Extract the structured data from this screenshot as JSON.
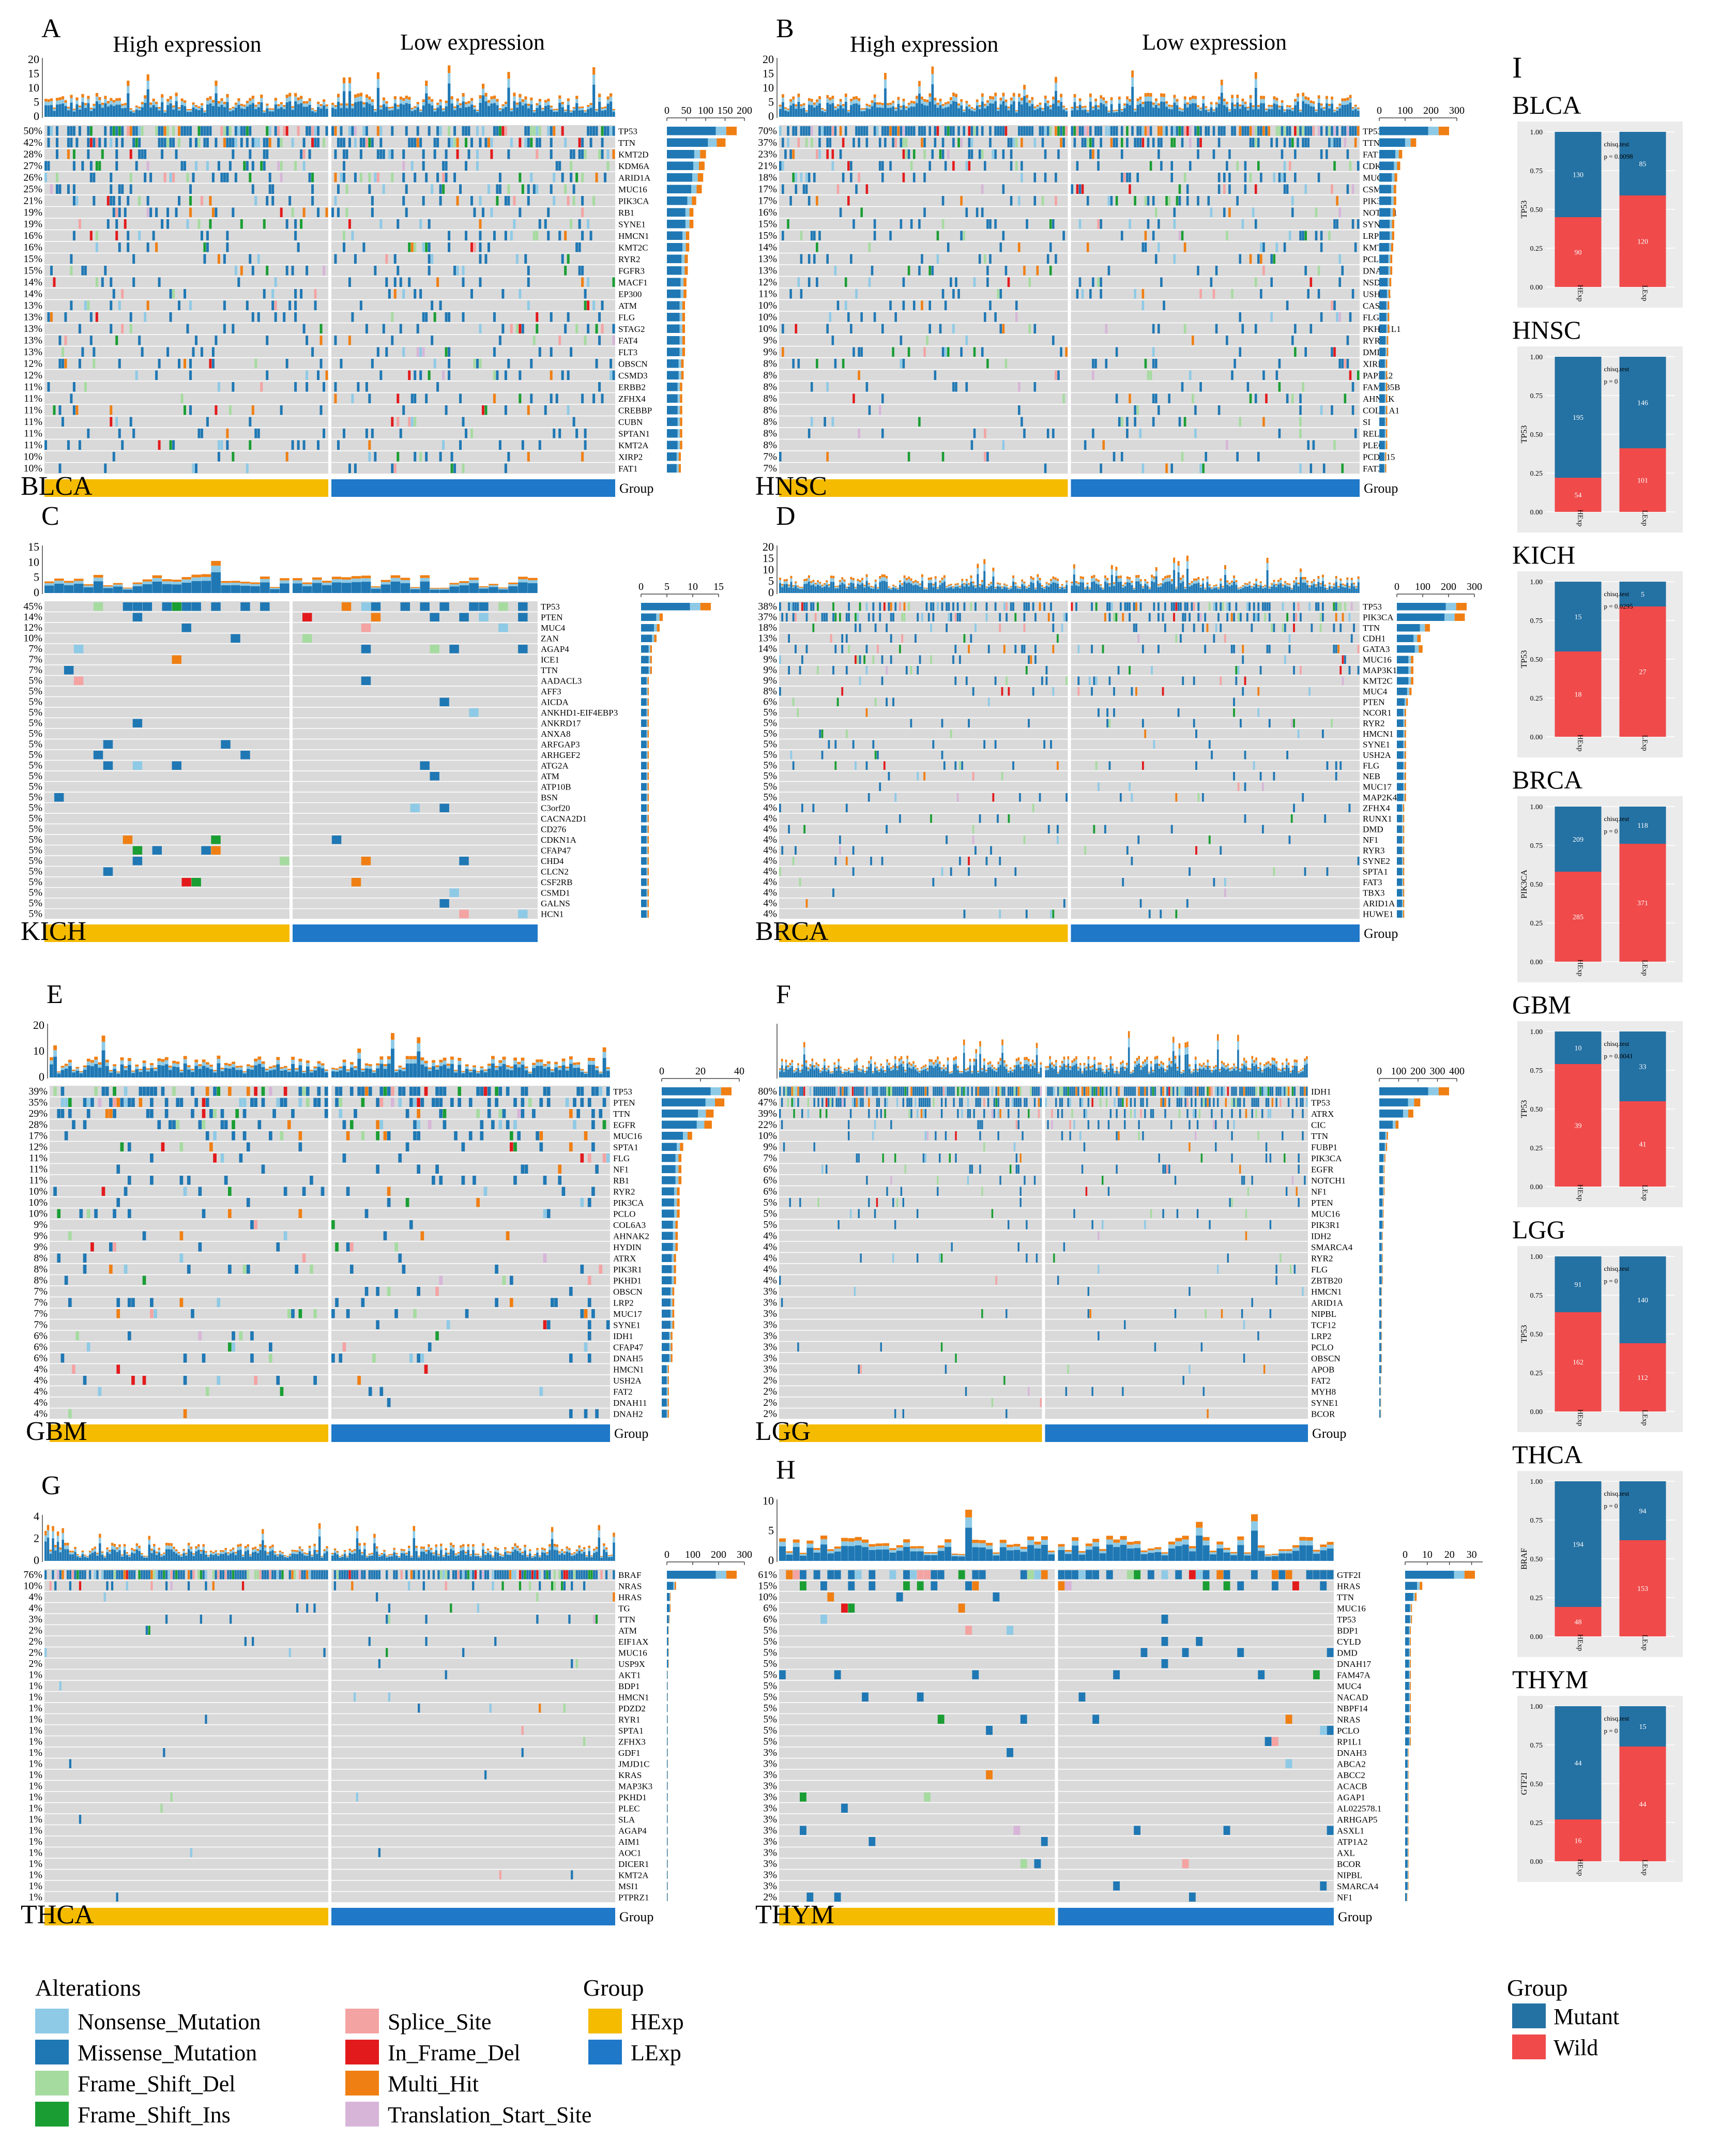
{
  "colors": {
    "Nonsense_Mutation": "#8ecae6",
    "Missense_Mutation": "#1f78b4",
    "Frame_Shift_Del": "#a6dba0",
    "Frame_Shift_Ins": "#1a9e33",
    "Splice_Site": "#f4a3a3",
    "In_Frame_Del": "#e31a1c",
    "Multi_Hit": "#f07f13",
    "Translation_Start_Site": "#d7b5d8",
    "HExp": "#f5bb00",
    "LExp": "#1f78c8",
    "Mutant": "#2471a3",
    "Wild": "#f04a4a",
    "grid": "#d9d9d9",
    "panel_bg": "#ebebeb"
  },
  "legend": {
    "alterations_title": "Alterations",
    "alterations": [
      "Nonsense_Mutation",
      "Missense_Mutation",
      "Frame_Shift_Del",
      "Frame_Shift_Ins",
      "Splice_Site",
      "In_Frame_Del",
      "Multi_Hit",
      "Translation_Start_Site"
    ],
    "group_title": "Group",
    "groups": [
      "HExp",
      "LExp"
    ],
    "right_group_title": "Group",
    "right_groups": [
      "Mutant",
      "Wild"
    ]
  },
  "chart_data": [
    {
      "type": "heatmap",
      "panel": "A",
      "cancer": "BLCA",
      "header_left": "High expression",
      "header_right": "Low expression",
      "tmb_ticks": [
        "0",
        "5",
        "10",
        "15",
        "20"
      ],
      "side_ticks": [
        "0",
        "50",
        "100",
        "150",
        "200"
      ],
      "side_max": 200,
      "group_label": "Group",
      "genes": [
        "TP53",
        "TTN",
        "KMT2D",
        "KDM6A",
        "ARID1A",
        "MUC16",
        "PIK3CA",
        "RB1",
        "SYNE1",
        "HMCN1",
        "KMT2C",
        "RYR2",
        "FGFR3",
        "MACF1",
        "EP300",
        "ATM",
        "FLG",
        "STAG2",
        "FAT4",
        "FLT3",
        "OBSCN",
        "CSMD3",
        "ERBB2",
        "ZFHX4",
        "CREBBP",
        "CUBN",
        "SPTAN1",
        "KMT2A",
        "XIRP2",
        "FAT1"
      ],
      "pcts": [
        "50%",
        "42%",
        "28%",
        "27%",
        "26%",
        "25%",
        "21%",
        "19%",
        "19%",
        "16%",
        "16%",
        "15%",
        "15%",
        "14%",
        "14%",
        "13%",
        "13%",
        "13%",
        "13%",
        "13%",
        "12%",
        "12%",
        "11%",
        "11%",
        "11%",
        "11%",
        "11%",
        "11%",
        "10%",
        "10%"
      ]
    },
    {
      "type": "heatmap",
      "panel": "B",
      "cancer": "HNSC",
      "header_left": "High expression",
      "header_right": "Low expression",
      "tmb_ticks": [
        "0",
        "5",
        "10",
        "15",
        "20"
      ],
      "side_ticks": [
        "0",
        "100",
        "200",
        "300"
      ],
      "side_max": 300,
      "group_label": "Group",
      "genes": [
        "TP53",
        "TTN",
        "FAT1",
        "CDKN2A",
        "MUC16",
        "CSMD3",
        "PIK3CA",
        "NOTCH1",
        "SYNE1",
        "LRP1B",
        "KMT2D",
        "PCLO",
        "DNAH5",
        "NSD1",
        "USH2A",
        "CASP8",
        "FLG",
        "PKHD1L1",
        "RYR2",
        "DMD",
        "XIRP2",
        "PAPPA2",
        "FAM135B",
        "AHNAK",
        "COL11A1",
        "SI",
        "RELN",
        "PLEC",
        "PCDH15",
        "FAT3"
      ],
      "pcts": [
        "70%",
        "37%",
        "23%",
        "21%",
        "18%",
        "17%",
        "17%",
        "16%",
        "15%",
        "15%",
        "14%",
        "13%",
        "13%",
        "12%",
        "11%",
        "10%",
        "10%",
        "10%",
        "9%",
        "9%",
        "8%",
        "8%",
        "8%",
        "8%",
        "8%",
        "8%",
        "8%",
        "8%",
        "7%",
        "7%"
      ]
    },
    {
      "type": "heatmap",
      "panel": "C",
      "cancer": "KICH",
      "tmb_ticks": [
        "0",
        "5",
        "10",
        "15"
      ],
      "side_ticks": [
        "0",
        "5",
        "10",
        "15"
      ],
      "side_max": 15,
      "group_label": "",
      "genes": [
        "TP53",
        "PTEN",
        "MUC4",
        "ZAN",
        "AGAP4",
        "ICE1",
        "TTN",
        "AADACL3",
        "AFF3",
        "AICDA",
        "ANKHD1-EIF4EBP3",
        "ANKRD17",
        "ANXA8",
        "ARFGAP3",
        "ARHGEF2",
        "ATG2A",
        "ATM",
        "ATP10B",
        "BSN",
        "C3orf20",
        "CACNA2D1",
        "CD276",
        "CDKN1A",
        "CFAP47",
        "CHD4",
        "CLCN2",
        "CSF2RB",
        "CSMD1",
        "GALNS",
        "HCN1"
      ],
      "pcts": [
        "45%",
        "14%",
        "12%",
        "10%",
        "7%",
        "7%",
        "7%",
        "5%",
        "5%",
        "5%",
        "5%",
        "5%",
        "5%",
        "5%",
        "5%",
        "5%",
        "5%",
        "5%",
        "5%",
        "5%",
        "5%",
        "5%",
        "5%",
        "5%",
        "5%",
        "5%",
        "5%",
        "5%",
        "5%",
        "5%"
      ]
    },
    {
      "type": "heatmap",
      "panel": "D",
      "cancer": "BRCA",
      "tmb_ticks": [
        "0",
        "5",
        "10",
        "15",
        "20"
      ],
      "side_ticks": [
        "0",
        "100",
        "200",
        "300"
      ],
      "side_max": 300,
      "group_label": "Group",
      "genes": [
        "TP53",
        "PIK3CA",
        "TTN",
        "CDH1",
        "GATA3",
        "MUC16",
        "MAP3K1",
        "KMT2C",
        "MUC4",
        "PTEN",
        "NCOR1",
        "RYR2",
        "HMCN1",
        "SYNE1",
        "USH2A",
        "FLG",
        "NEB",
        "MUC17",
        "MAP2K4",
        "ZFHX4",
        "RUNX1",
        "DMD",
        "NF1",
        "RYR3",
        "SYNE2",
        "SPTA1",
        "FAT3",
        "TBX3",
        "ARID1A",
        "HUWE1"
      ],
      "pcts": [
        "38%",
        "37%",
        "18%",
        "13%",
        "14%",
        "9%",
        "9%",
        "9%",
        "8%",
        "6%",
        "5%",
        "5%",
        "5%",
        "5%",
        "5%",
        "5%",
        "5%",
        "5%",
        "5%",
        "4%",
        "4%",
        "4%",
        "4%",
        "4%",
        "4%",
        "4%",
        "4%",
        "4%",
        "4%",
        "4%"
      ]
    },
    {
      "type": "heatmap",
      "panel": "E",
      "cancer": "GBM",
      "tmb_ticks": [
        "0",
        "10",
        "20"
      ],
      "side_ticks": [
        "0",
        "20",
        "40"
      ],
      "side_max": 40,
      "group_label": "Group",
      "genes": [
        "TP53",
        "PTEN",
        "TTN",
        "EGFR",
        "MUC16",
        "SPTA1",
        "FLG",
        "NF1",
        "RB1",
        "RYR2",
        "PIK3CA",
        "PCLO",
        "COL6A3",
        "AHNAK2",
        "HYDIN",
        "ATRX",
        "PIK3R1",
        "PKHD1",
        "OBSCN",
        "LRP2",
        "MUC17",
        "SYNE1",
        "IDH1",
        "CFAP47",
        "DNAH5",
        "HMCN1",
        "USH2A",
        "FAT2",
        "DNAH11",
        "DNAH2"
      ],
      "pcts": [
        "39%",
        "35%",
        "29%",
        "28%",
        "17%",
        "12%",
        "11%",
        "11%",
        "11%",
        "10%",
        "10%",
        "10%",
        "9%",
        "9%",
        "9%",
        "8%",
        "8%",
        "8%",
        "7%",
        "7%",
        "7%",
        "7%",
        "6%",
        "6%",
        "6%",
        "4%",
        "4%",
        "4%",
        "4%",
        "4%"
      ]
    },
    {
      "type": "heatmap",
      "panel": "F",
      "cancer": "LGG",
      "tmb_ticks": [],
      "side_ticks": [
        "0",
        "100",
        "200",
        "300",
        "400"
      ],
      "side_max": 400,
      "group_label": "Group",
      "genes": [
        "IDH1",
        "TP53",
        "ATRX",
        "CIC",
        "TTN",
        "FUBP1",
        "PIK3CA",
        "EGFR",
        "NOTCH1",
        "NF1",
        "PTEN",
        "MUC16",
        "PIK3R1",
        "IDH2",
        "SMARCA4",
        "RYR2",
        "FLG",
        "ZBTB20",
        "HMCN1",
        "ARID1A",
        "NIPBL",
        "TCF12",
        "LRP2",
        "PCLO",
        "OBSCN",
        "APOB",
        "FAT2",
        "MYH8",
        "SYNE1",
        "BCOR"
      ],
      "pcts": [
        "80%",
        "47%",
        "39%",
        "22%",
        "10%",
        "9%",
        "7%",
        "6%",
        "6%",
        "6%",
        "5%",
        "5%",
        "5%",
        "4%",
        "4%",
        "4%",
        "4%",
        "4%",
        "3%",
        "3%",
        "3%",
        "3%",
        "3%",
        "3%",
        "3%",
        "3%",
        "2%",
        "2%",
        "2%",
        "2%"
      ]
    },
    {
      "type": "heatmap",
      "panel": "G",
      "cancer": "THCA",
      "tmb_ticks": [
        "0",
        "2",
        "4"
      ],
      "side_ticks": [
        "0",
        "100",
        "200",
        "300"
      ],
      "side_max": 300,
      "group_label": "Group",
      "genes": [
        "BRAF",
        "NRAS",
        "HRAS",
        "TG",
        "TTN",
        "ATM",
        "EIF1AX",
        "MUC16",
        "USP9X",
        "AKT1",
        "BDP1",
        "HMCN1",
        "PDZD2",
        "RYR1",
        "SPTA1",
        "ZFHX3",
        "GDF1",
        "JMJD1C",
        "KRAS",
        "MAP3K3",
        "PKHD1",
        "PLEC",
        "SLA",
        "AGAP4",
        "AIM1",
        "AOC1",
        "DICER1",
        "KMT2A",
        "MSI1",
        "PTPRZ1"
      ],
      "pcts": [
        "76%",
        "10%",
        "4%",
        "4%",
        "3%",
        "2%",
        "2%",
        "2%",
        "2%",
        "1%",
        "1%",
        "1%",
        "1%",
        "1%",
        "1%",
        "1%",
        "1%",
        "1%",
        "1%",
        "1%",
        "1%",
        "1%",
        "1%",
        "1%",
        "1%",
        "1%",
        "1%",
        "1%",
        "1%",
        "1%"
      ]
    },
    {
      "type": "heatmap",
      "panel": "H",
      "cancer": "THYM",
      "tmb_ticks": [
        "0",
        "5",
        "10"
      ],
      "side_ticks": [
        "0",
        "10",
        "20",
        "30"
      ],
      "side_max": 35,
      "group_label": "Group",
      "genes": [
        "GTF2I",
        "HRAS",
        "TTN",
        "MUC16",
        "TP53",
        "BDP1",
        "CYLD",
        "DMD",
        "DNAH17",
        "FAM47A",
        "MUC4",
        "NACAD",
        "NBPF14",
        "NRAS",
        "PCLO",
        "RP1L1",
        "DNAH3",
        "ABCA2",
        "ABCC2",
        "ACACB",
        "AGAP1",
        "AL022578.1",
        "ARHGAP5",
        "ASXL1",
        "ATP1A2",
        "AXL",
        "BCOR",
        "NIPBL",
        "SMARCA4",
        "NF1"
      ],
      "pcts": [
        "61%",
        "15%",
        "10%",
        "6%",
        "6%",
        "5%",
        "5%",
        "5%",
        "5%",
        "5%",
        "5%",
        "5%",
        "5%",
        "5%",
        "5%",
        "5%",
        "3%",
        "3%",
        "3%",
        "3%",
        "3%",
        "3%",
        "3%",
        "3%",
        "3%",
        "3%",
        "3%",
        "3%",
        "3%",
        "2%"
      ]
    },
    {
      "type": "bar",
      "panel": "I",
      "cancer": "BLCA",
      "ylabel": "TP53",
      "categories": [
        "HExp",
        "LExp"
      ],
      "test_label": "chisq.test",
      "p_text": "p = 0.0098",
      "series": [
        {
          "name": "Mutant",
          "values": [
            130,
            85
          ]
        },
        {
          "name": "Wild",
          "values": [
            90,
            120
          ]
        }
      ],
      "mutant_fraction": [
        0.55,
        0.41
      ],
      "yticks": [
        "0.00",
        "0.25",
        "0.50",
        "0.75",
        "1.00"
      ]
    },
    {
      "type": "bar",
      "panel": "I",
      "cancer": "HNSC",
      "ylabel": "TP53",
      "categories": [
        "HExp",
        "LExp"
      ],
      "test_label": "chisq.test",
      "p_text": "p = 0",
      "series": [
        {
          "name": "Mutant",
          "values": [
            195,
            146
          ]
        },
        {
          "name": "Wild",
          "values": [
            54,
            101
          ]
        }
      ],
      "mutant_fraction": [
        0.78,
        0.59
      ],
      "yticks": [
        "0.00",
        "0.25",
        "0.50",
        "0.75",
        "1.00"
      ]
    },
    {
      "type": "bar",
      "panel": "I",
      "cancer": "KICH",
      "ylabel": "TP53",
      "categories": [
        "HExp",
        "LExp"
      ],
      "test_label": "chisq.test",
      "p_text": "p = 0.0295",
      "series": [
        {
          "name": "Mutant",
          "values": [
            15,
            5
          ]
        },
        {
          "name": "Wild",
          "values": [
            18,
            27
          ]
        }
      ],
      "mutant_fraction": [
        0.45,
        0.16
      ],
      "yticks": [
        "0.00",
        "0.25",
        "0.50",
        "0.75",
        "1.00"
      ]
    },
    {
      "type": "bar",
      "panel": "I",
      "cancer": "BRCA",
      "ylabel": "PIK3CA",
      "categories": [
        "HExp",
        "LExp"
      ],
      "test_label": "chisq.test",
      "p_text": "p = 0",
      "series": [
        {
          "name": "Mutant",
          "values": [
            209,
            118
          ]
        },
        {
          "name": "Wild",
          "values": [
            285,
            371
          ]
        }
      ],
      "mutant_fraction": [
        0.42,
        0.24
      ],
      "yticks": [
        "0.00",
        "0.25",
        "0.50",
        "0.75",
        "1.00"
      ]
    },
    {
      "type": "bar",
      "panel": "I",
      "cancer": "GBM",
      "ylabel": "TP53",
      "categories": [
        "HExp",
        "LExp"
      ],
      "test_label": "chisq.test",
      "p_text": "p = 0.0041",
      "series": [
        {
          "name": "Mutant",
          "values": [
            10,
            33
          ]
        },
        {
          "name": "Wild",
          "values": [
            39,
            41
          ]
        }
      ],
      "mutant_fraction": [
        0.21,
        0.45
      ],
      "yticks": [
        "0.00",
        "0.25",
        "0.50",
        "0.75",
        "1.00"
      ]
    },
    {
      "type": "bar",
      "panel": "I",
      "cancer": "LGG",
      "ylabel": "TP53",
      "categories": [
        "HExp",
        "LExp"
      ],
      "test_label": "chisq.test",
      "p_text": "p = 0",
      "series": [
        {
          "name": "Mutant",
          "values": [
            91,
            140
          ]
        },
        {
          "name": "Wild",
          "values": [
            162,
            112
          ]
        }
      ],
      "mutant_fraction": [
        0.36,
        0.56
      ],
      "yticks": [
        "0.00",
        "0.25",
        "0.50",
        "0.75",
        "1.00"
      ]
    },
    {
      "type": "bar",
      "panel": "I",
      "cancer": "THCA",
      "ylabel": "BRAF",
      "categories": [
        "HExp",
        "LExp"
      ],
      "test_label": "chisq.test",
      "p_text": "p = 0",
      "series": [
        {
          "name": "Mutant",
          "values": [
            194,
            94
          ]
        },
        {
          "name": "Wild",
          "values": [
            48,
            153
          ]
        }
      ],
      "mutant_fraction": [
        0.81,
        0.38
      ],
      "yticks": [
        "0.00",
        "0.25",
        "0.50",
        "0.75",
        "1.00"
      ]
    },
    {
      "type": "bar",
      "panel": "I",
      "cancer": "THYM",
      "ylabel": "GTF2I",
      "categories": [
        "HExp",
        "LExp"
      ],
      "test_label": "chisq.test",
      "p_text": "p = 0",
      "series": [
        {
          "name": "Mutant",
          "values": [
            44,
            15
          ]
        },
        {
          "name": "Wild",
          "values": [
            16,
            44
          ]
        }
      ],
      "mutant_fraction": [
        0.73,
        0.26
      ],
      "yticks": [
        "0.00",
        "0.25",
        "0.50",
        "0.75",
        "1.00"
      ]
    }
  ],
  "panel_I_label": "I"
}
